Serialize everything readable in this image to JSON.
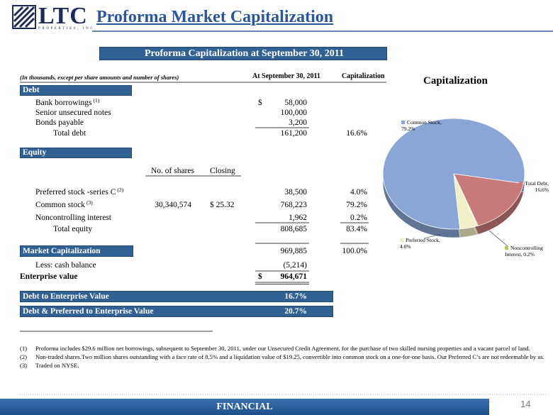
{
  "logo": {
    "name": "LTC",
    "sub": "PROPERTIES, INC."
  },
  "title": "Proforma Market Capitalization",
  "table": {
    "title": "Proforma Capitalization at September 30, 2011",
    "note": "(In thousands, except per share amounts and number of shares)",
    "col_at": "At September 30, 2011",
    "col_cap": "Capitalization",
    "debt": {
      "heading": "Debt",
      "rows": [
        {
          "label": "Bank borrowings",
          "sup": "(1)",
          "dollar": "$",
          "amount": "58,000"
        },
        {
          "label": "Senior unsecured notes",
          "amount": "100,000"
        },
        {
          "label": "Bonds payable",
          "amount": "3,200"
        },
        {
          "label": "Total debt",
          "amount": "161,200",
          "pct": "16.6%"
        }
      ]
    },
    "equity": {
      "heading": "Equity",
      "col_shares": "No. of shares",
      "col_closing": "Closing",
      "rows": [
        {
          "label": "Preferred stock -series C",
          "sup": "(2)",
          "amount": "38,500",
          "pct": "4.0%"
        },
        {
          "label": "Common stock",
          "sup": "(3)",
          "shares": "30,340,574",
          "closing": "$ 25.32",
          "amount": "768,223",
          "pct": "79.2%"
        },
        {
          "label": "Noncontrolling interest",
          "amount": "1,962",
          "pct": "0.2%"
        },
        {
          "label": "Total equity",
          "amount": "808,685",
          "pct": "83.4%"
        }
      ]
    },
    "market_cap": {
      "label": "Market Capitalization",
      "amount": "969,885",
      "pct": "100.0%"
    },
    "cash": {
      "label": "Less:  cash balance",
      "amount": "(5,214)"
    },
    "enterprise": {
      "label": "Enterprise value",
      "dollar": "$",
      "amount": "964,671"
    },
    "ratios": [
      {
        "label": "Debt to Enterprise Value",
        "value": "16.7%"
      },
      {
        "label": "Debt & Preferred to Enterprise Value",
        "value": "20.7%"
      }
    ]
  },
  "footnotes": [
    {
      "marker": "(1)",
      "text": "Proforma includes $29.6 million net borrowings, subsequent to September 30, 2011, under our Unsecured Credit Agreement, for the purchase of two skilled nursing properties and a vacant parcel of land."
    },
    {
      "marker": "(2)",
      "text": "Non-traded shares.Two million shares outstanding with a face rate of 8.5% and a liquidation value of $19.25, convertible into common stock on a one-for-one basis. Our Preferred C’s are not redeemable by us."
    },
    {
      "marker": "(3)",
      "text": "Traded on NYSE."
    }
  ],
  "footer": {
    "section": "FINANCIAL",
    "page": "14"
  },
  "chart_data": {
    "type": "pie",
    "title": "Capitalization",
    "values": [
      79.2,
      16.6,
      0.2,
      4.0
    ],
    "value_labels": [
      "Common Stock, 79.2%",
      "Total Debt, 16.6%",
      "Noncontrolling Interest, 0.2%",
      "Preferred Stock, 4.0%"
    ],
    "colors": [
      "#8ba6d6",
      "#c97b7b",
      "#a9c863",
      "#f1f0c6"
    ]
  }
}
